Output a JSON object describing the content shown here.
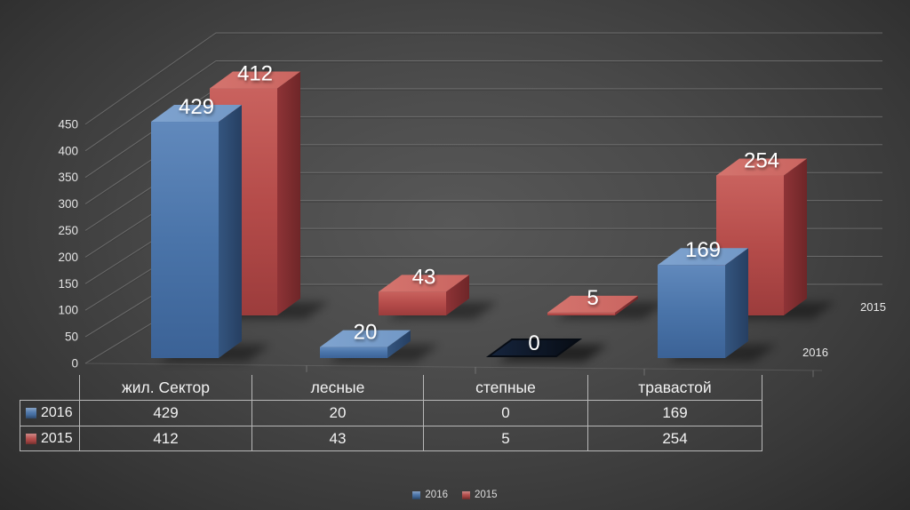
{
  "chart_data": {
    "type": "bar",
    "projection": "3d",
    "title": "",
    "categories": [
      "жил. Сектор",
      "лесные",
      "степные",
      "травастой"
    ],
    "series": [
      {
        "name": "2016",
        "values": [
          429,
          20,
          0,
          169
        ],
        "color": "#4a74a9"
      },
      {
        "name": "2015",
        "values": [
          412,
          43,
          5,
          254
        ],
        "color": "#b54c4a"
      }
    ],
    "ylim": [
      0,
      450
    ],
    "ytick_step": 50,
    "yticks": [
      0,
      50,
      100,
      150,
      200,
      250,
      300,
      350,
      400,
      450
    ],
    "grid": true,
    "data_labels": true,
    "legend_position": "bottom",
    "depth_axis_labels": [
      "2016",
      "2015"
    ],
    "data_table_shown": true
  },
  "colors": {
    "background_center": "#585858",
    "background_edge": "#272727",
    "gridline": "#787878",
    "gridline_shadow": "#3c3c3c",
    "axis_text": "#e3e3e3",
    "table_border": "#b8b8b8",
    "table_text": "#f2f2f2",
    "blue_front_light": "#6189bc",
    "blue_front": "#4a74a9",
    "blue_front_dark": "#3b6296",
    "blue_side": "#34557f",
    "blue_side_dark": "#263f62",
    "blue_top": "#7298c6",
    "red_front_light": "#c9625e",
    "red_front": "#b54c4a",
    "red_front_dark": "#9c3c3c",
    "red_side": "#8e3336",
    "red_side_dark": "#6e2628",
    "red_top": "#ca6560",
    "zero_marker": "#16253e",
    "zero_marker_edge": "#070c14",
    "bar_label": "#ffffff"
  }
}
